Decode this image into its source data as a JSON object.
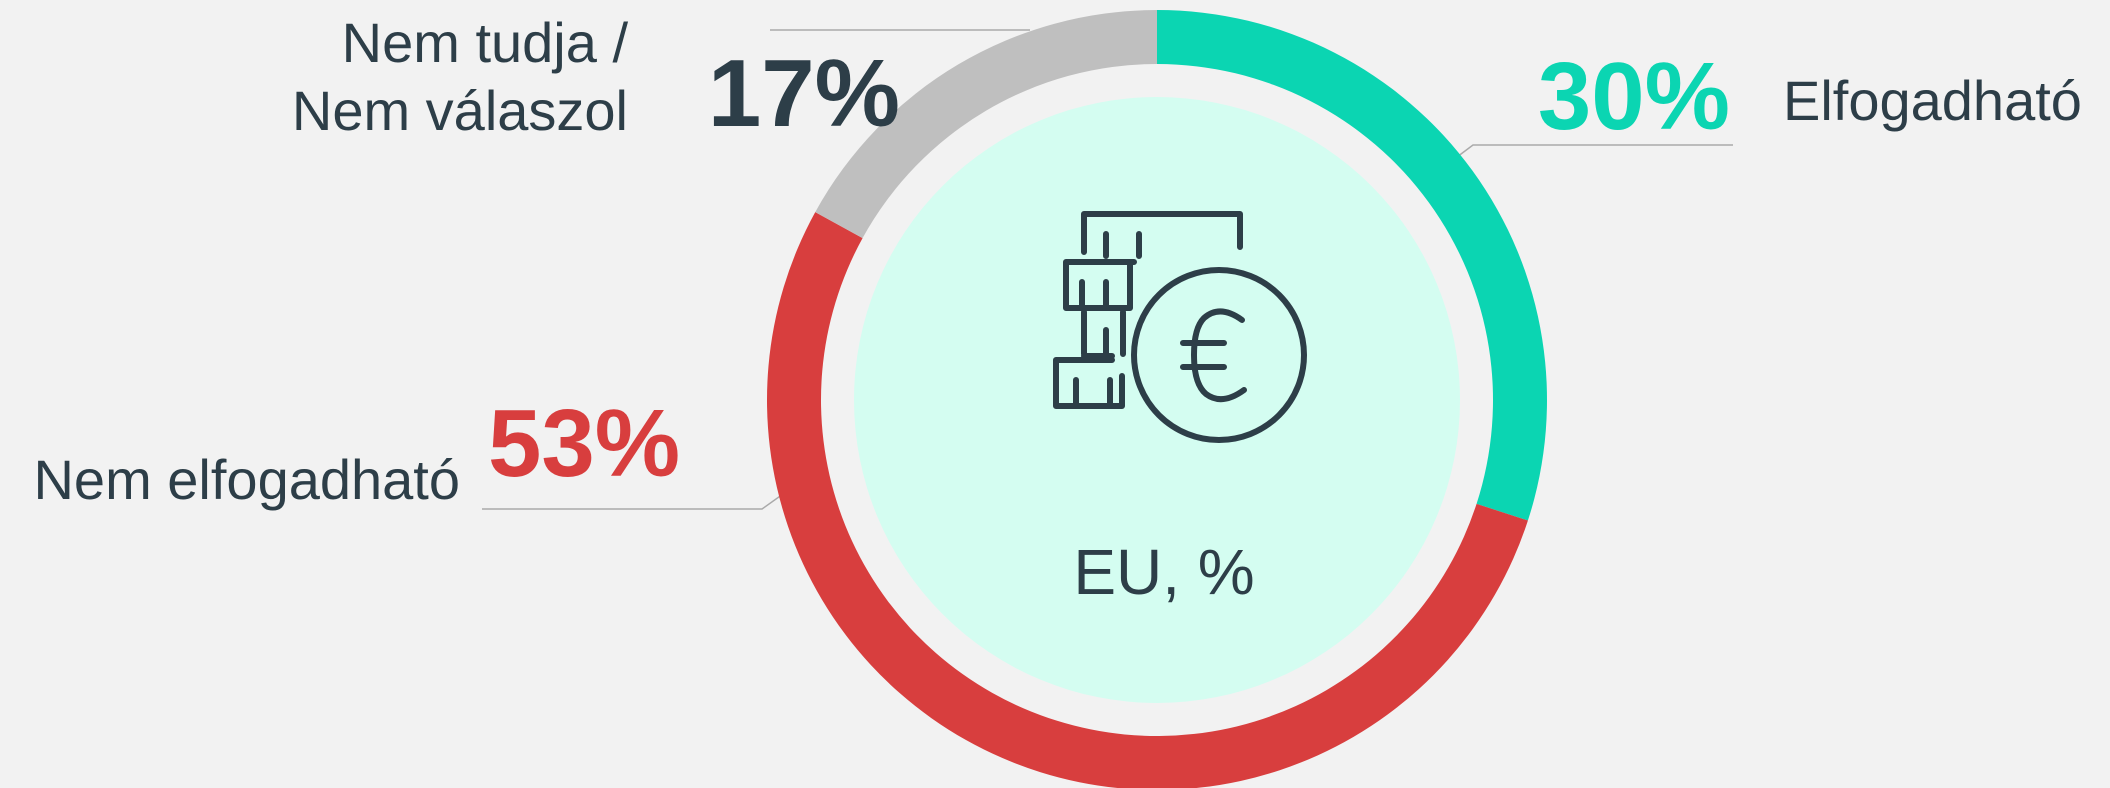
{
  "chart_data": {
    "type": "donut",
    "center_label": "EU, %",
    "categories": [
      "Elfogadható",
      "Nem elfogadható",
      "Nem tudja / Nem válaszol"
    ],
    "values": [
      30,
      53,
      17
    ],
    "value_labels": [
      "30%",
      "53%",
      "17%"
    ],
    "colors": [
      "#0bd5b2",
      "#d83e3e",
      "#bfbfbf"
    ],
    "value_label_colors": [
      "#0bd5b2",
      "#d83e3e",
      "#2d3e48"
    ]
  }
}
